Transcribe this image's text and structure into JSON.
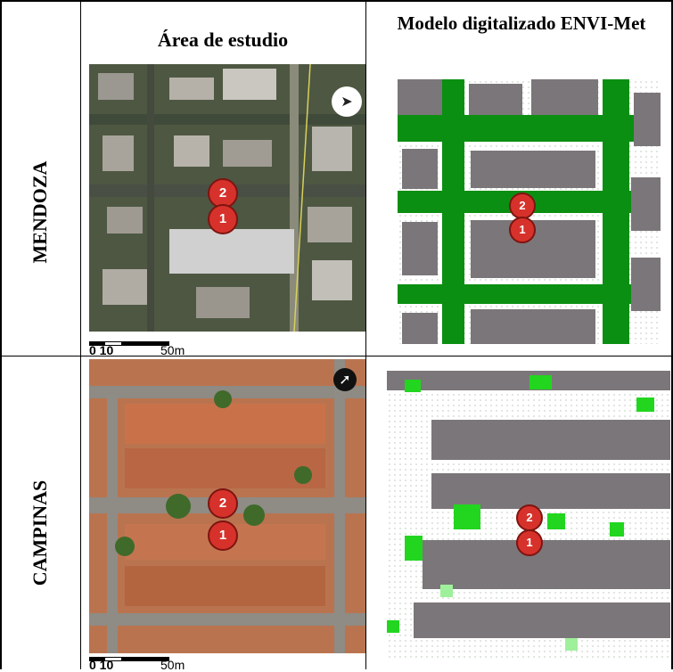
{
  "headers": {
    "study_area": "Área de estudio",
    "envi_model": "Modelo digitalizado ENVI-Met"
  },
  "rows": [
    {
      "city": "MENDOZA"
    },
    {
      "city": "CAMPINAS"
    }
  ],
  "markers": {
    "one": "1",
    "two": "2"
  },
  "scale_bar": {
    "start": "0 10",
    "end": "50m"
  },
  "north_arrow_icon": "north-arrow-icon",
  "colors": {
    "building_grey": "#7b7679",
    "vegetation_green": "#0b8f12",
    "light_green": "#22d61f",
    "marker_red": "#d6322b"
  }
}
